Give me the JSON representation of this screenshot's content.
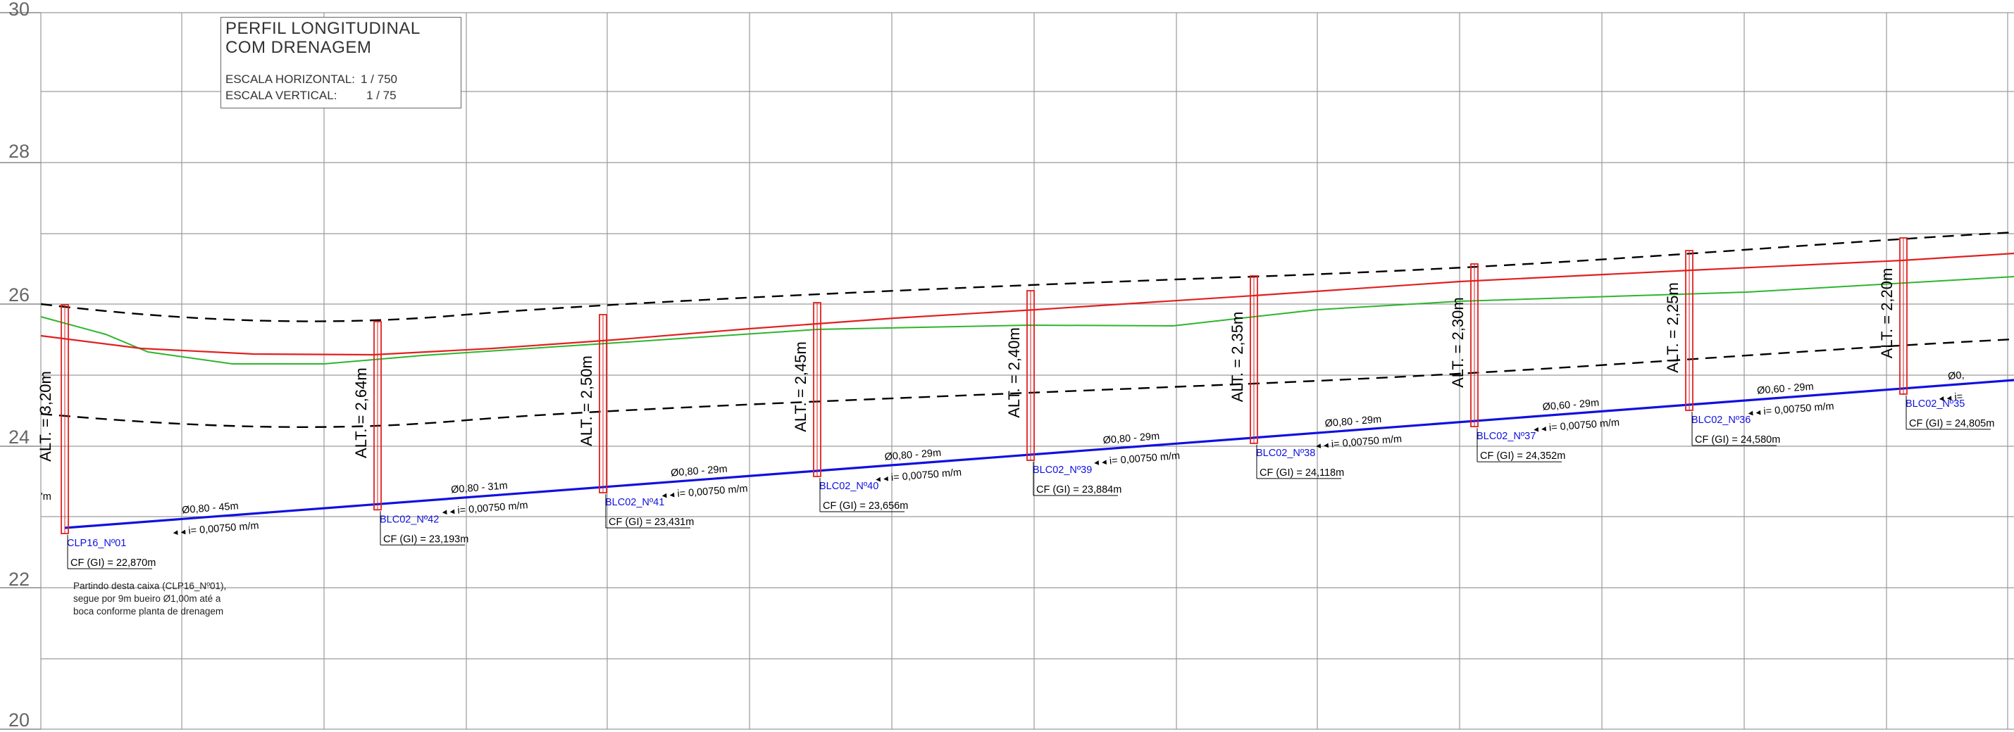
{
  "title": {
    "line1": "PERFIL LONGITUDINAL",
    "line2": "COM DRENAGEM",
    "scale_h_label": "ESCALA HORIZONTAL:",
    "scale_h_value": "1 / 750",
    "scale_v_label": "ESCALA VERTICAL:",
    "scale_v_value": "1 / 75"
  },
  "elevation_labels": [
    "30",
    "28",
    "26",
    "24",
    "22",
    "20"
  ],
  "colors": {
    "pipe": "#1010e0",
    "terrain": "#2db52d",
    "design_grade": "#e02020",
    "wells": "#e02020",
    "labels": "#1010e0",
    "dashed": "#000000",
    "grid": "#9a9a9a"
  },
  "stations": [
    {
      "id": "CLP16_Nº01",
      "cf": "CF (GI) = 22,870m",
      "alt": "ALT. = 3,20m"
    },
    {
      "id": "BLC02_Nº42",
      "cf": "CF (GI) = 23,193m",
      "alt": "ALT. = 2,64m"
    },
    {
      "id": "BLC02_Nº41",
      "cf": "CF (GI) = 23,431m",
      "alt": "ALT. = 2,50m"
    },
    {
      "id": "BLC02_Nº40",
      "cf": "CF (GI) = 23,656m",
      "alt": "ALT. = 2,45m"
    },
    {
      "id": "BLC02_Nº39",
      "cf": "CF (GI) = 23,884m",
      "alt": "ALT. = 2,40m"
    },
    {
      "id": "BLC02_Nº38",
      "cf": "CF (GI) = 24,118m",
      "alt": "ALT. = 2,35m"
    },
    {
      "id": "BLC02_Nº37",
      "cf": "CF (GI) = 24,352m",
      "alt": "ALT. = 2,30m"
    },
    {
      "id": "BLC02_Nº36",
      "cf": "CF (GI) = 24,580m",
      "alt": "ALT. = 2,25m"
    },
    {
      "id": "BLC02_Nº35",
      "cf": "CF (GI) = 24,805m",
      "alt": "ALT. = 2,20m"
    }
  ],
  "segments": [
    {
      "pipe": "Ø0,80 - 45m",
      "slope": "i= 0,00750 m/m"
    },
    {
      "pipe": "Ø0,80 - 31m",
      "slope": "i= 0,00750 m/m"
    },
    {
      "pipe": "Ø0,80 - 29m",
      "slope": "i= 0,00750 m/m"
    },
    {
      "pipe": "Ø0,80 - 29m",
      "slope": "i= 0,00750 m/m"
    },
    {
      "pipe": "Ø0,80 - 29m",
      "slope": "i= 0,00750 m/m"
    },
    {
      "pipe": "Ø0,80 - 29m",
      "slope": "i= 0,00750 m/m"
    },
    {
      "pipe": "Ø0,60 - 29m",
      "slope": "i= 0,00750 m/m"
    },
    {
      "pipe": "Ø0,60 - 29m",
      "slope": "i= 0,00750 m/m"
    },
    {
      "pipe": "Ø0,",
      "slope": "i="
    }
  ],
  "edge_fragment": "'m",
  "note": "Partindo desta caixa (CLP16_Nº01),\nsegue por 9m bueiro Ø1,00m até a\nboca conforme planta de drenagem"
}
